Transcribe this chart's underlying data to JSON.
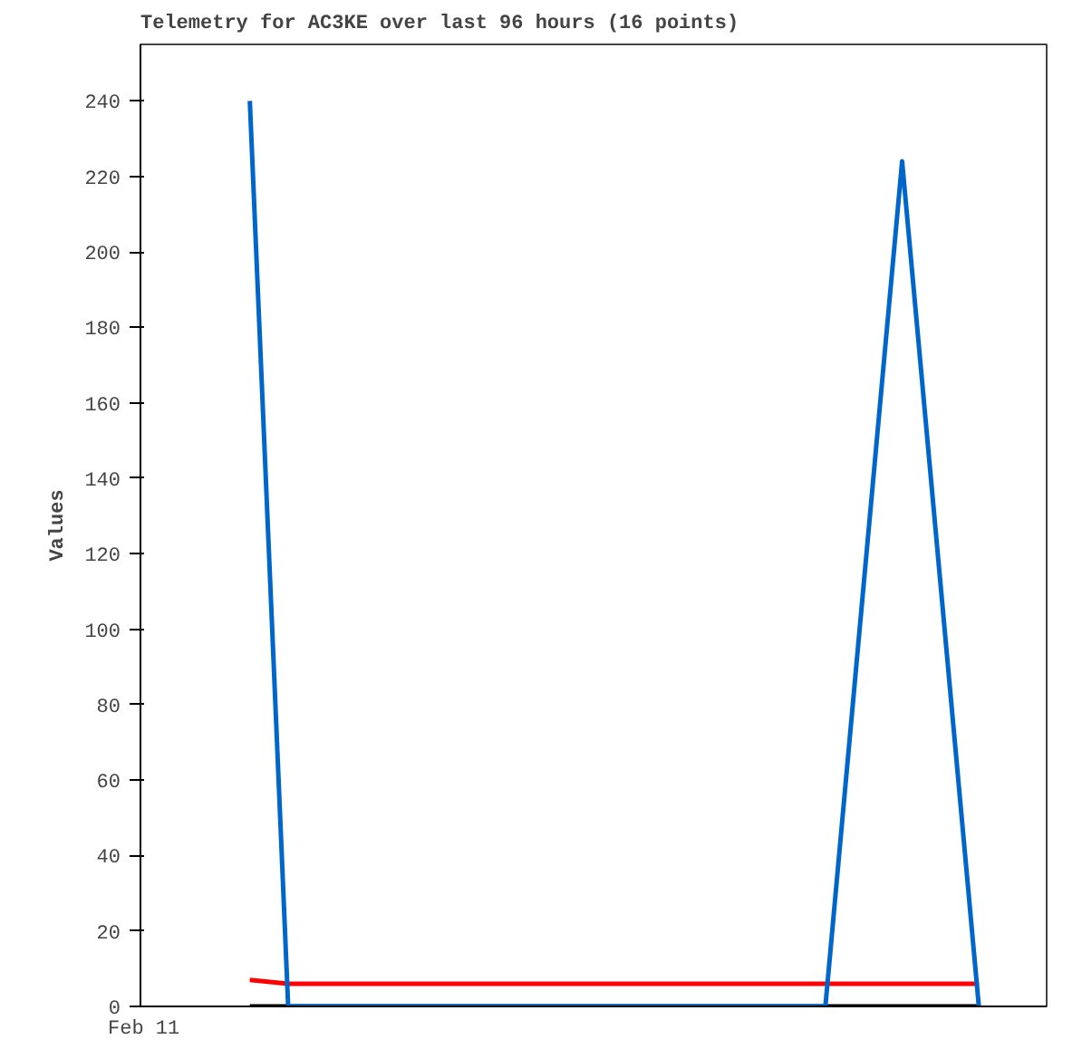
{
  "chart_data": {
    "type": "line",
    "title": "Telemetry for AC3KE over last 96 hours (16 points)",
    "ylabel": "Values",
    "annotations": [
      "Feb 11"
    ],
    "categories": [
      null,
      null,
      null,
      null,
      null,
      null,
      null,
      null,
      null,
      null,
      null,
      null,
      null,
      null,
      null,
      null,
      null,
      null,
      null,
      null
    ],
    "ylim": [
      0,
      255
    ],
    "yticks": [
      0,
      20,
      40,
      60,
      80,
      100,
      120,
      140,
      160,
      180,
      200,
      220,
      240
    ],
    "grid": false,
    "marker": "none",
    "line_style": "solid",
    "series": [
      {
        "color": "#000000",
        "values": [
          0,
          0,
          0,
          0,
          0,
          0,
          0,
          0,
          0,
          0,
          0,
          0,
          0,
          0,
          0,
          0,
          0,
          0,
          0,
          0
        ]
      },
      {
        "color": "#ff0000",
        "values": [
          7,
          6,
          6,
          6,
          6,
          6,
          6,
          6,
          6,
          6,
          6,
          6,
          6,
          6,
          6,
          6,
          6,
          6,
          6,
          6
        ]
      },
      {
        "color": "#0066cc",
        "values": [
          240,
          0,
          0,
          0,
          0,
          0,
          0,
          0,
          0,
          0,
          0,
          0,
          0,
          0,
          0,
          0,
          112,
          224,
          112,
          0
        ]
      }
    ]
  }
}
